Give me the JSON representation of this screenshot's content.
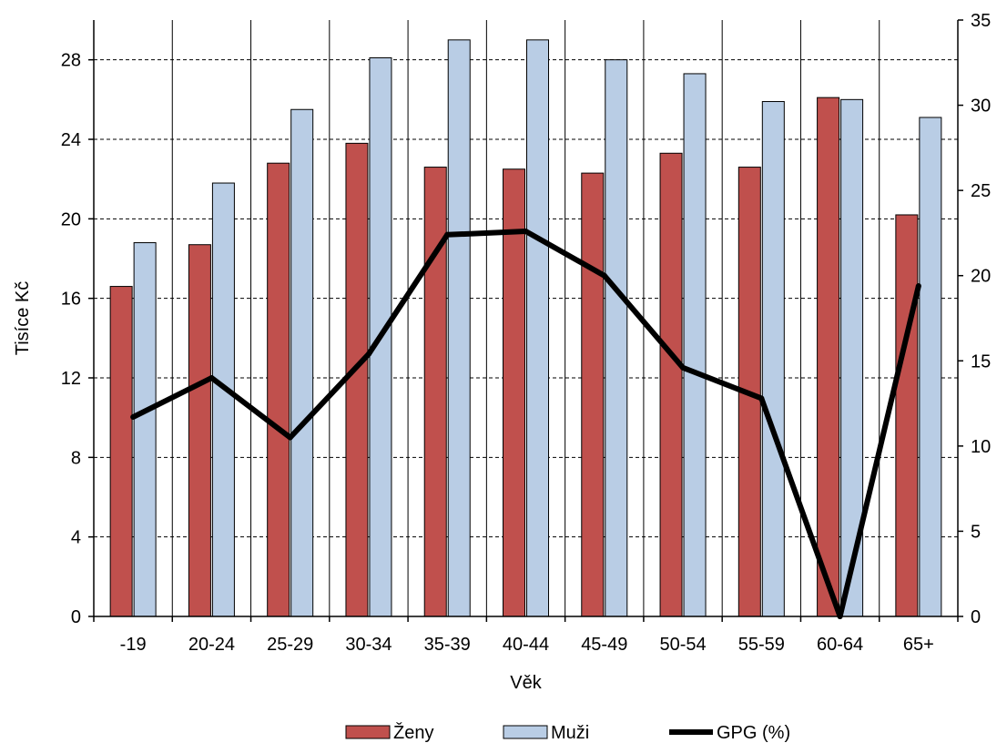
{
  "chart_data": {
    "type": "bar",
    "categories": [
      "-19",
      "20-24",
      "25-29",
      "30-34",
      "35-39",
      "40-44",
      "45-49",
      "50-54",
      "55-59",
      "60-64",
      "65+"
    ],
    "series": [
      {
        "name": "Ženy",
        "type": "bar",
        "axis": "left",
        "color": "#c0504d",
        "values": [
          16.6,
          18.7,
          22.8,
          23.8,
          22.6,
          22.5,
          22.3,
          23.3,
          22.6,
          26.1,
          20.2
        ]
      },
      {
        "name": "Muži",
        "type": "bar",
        "axis": "left",
        "color": "#b9cde5",
        "values": [
          18.8,
          21.8,
          25.5,
          28.1,
          29.0,
          29.0,
          28.0,
          27.3,
          25.9,
          26.0,
          25.1
        ]
      },
      {
        "name": "GPG (%)",
        "type": "line",
        "axis": "right",
        "color": "#000000",
        "values": [
          11.7,
          14.0,
          10.5,
          15.4,
          22.4,
          22.6,
          20.0,
          14.6,
          12.8,
          0.0,
          19.4
        ]
      }
    ],
    "xlabel": "Věk",
    "ylabel": "Tisíce  Kč",
    "ylim": [
      0,
      30
    ],
    "yticks": [
      "0",
      "4",
      "8",
      "12",
      "16",
      "20",
      "24",
      "28"
    ],
    "y2lim": [
      0,
      35
    ],
    "y2ticks": [
      "0",
      "5",
      "10",
      "15",
      "20",
      "25",
      "30",
      "35"
    ],
    "grid": "horizontal-dashed",
    "legend_position": "bottom"
  }
}
